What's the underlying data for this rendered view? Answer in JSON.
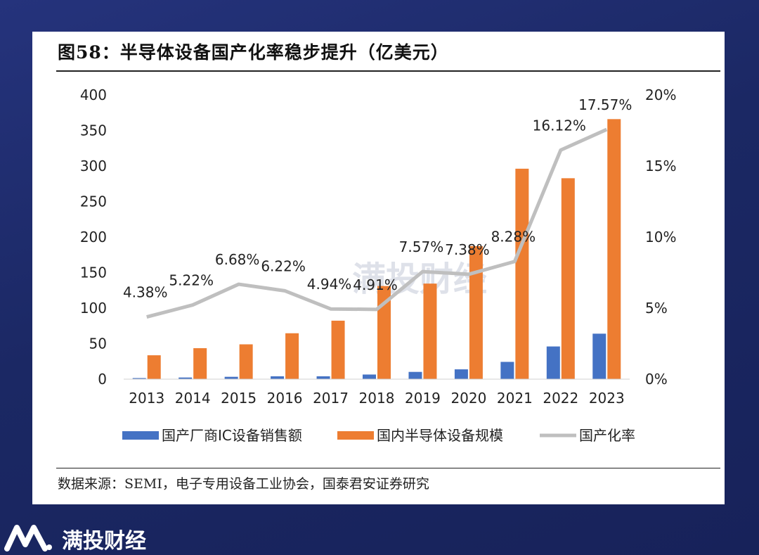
{
  "header": {
    "title": "图58：半导体设备国产化率稳步提升（亿美元）"
  },
  "source": "数据来源：SEMI，电子专用设备工业协会，国泰君安证券研究",
  "watermark": "满投财经",
  "footer": {
    "brand": "满投财经"
  },
  "colors": {
    "series_blue": "#4472c4",
    "series_orange": "#ed7d31",
    "series_gray": "#bfbfbf",
    "background": "#1c2a6b"
  },
  "chart_data": {
    "type": "bar",
    "categories": [
      "2013",
      "2014",
      "2015",
      "2016",
      "2017",
      "2018",
      "2019",
      "2020",
      "2021",
      "2022",
      "2023"
    ],
    "series": [
      {
        "name": "国产厂商IC设备销售额",
        "type": "bar",
        "values": [
          1.5,
          2.3,
          3.3,
          4.0,
          4.0,
          6.5,
          10.2,
          13.8,
          24.3,
          46.0,
          64.0
        ]
      },
      {
        "name": "国内半导体设备规模",
        "type": "bar",
        "values": [
          33.6,
          43.6,
          49.0,
          64.6,
          82.3,
          131.1,
          134.5,
          187.2,
          296.2,
          282.8,
          366.0
        ]
      },
      {
        "name": "国产化率",
        "type": "line",
        "axis": "right",
        "values": [
          4.38,
          5.22,
          6.68,
          6.22,
          4.94,
          4.91,
          7.57,
          7.38,
          8.28,
          16.12,
          17.57
        ],
        "labels": [
          "4.38%",
          "5.22%",
          "6.68%",
          "6.22%",
          "4.94%",
          "4.91%",
          "7.57%",
          "7.38%",
          "8.28%",
          "16.12%",
          "17.57%"
        ]
      }
    ],
    "ylim": [
      0,
      400
    ],
    "y_ticks": [
      "0",
      "50",
      "100",
      "150",
      "200",
      "250",
      "300",
      "350",
      "400"
    ],
    "y2lim": [
      0,
      20
    ],
    "y2_ticks": [
      "0%",
      "5%",
      "10%",
      "15%",
      "20%"
    ],
    "legend_position": "bottom",
    "grid": false
  }
}
